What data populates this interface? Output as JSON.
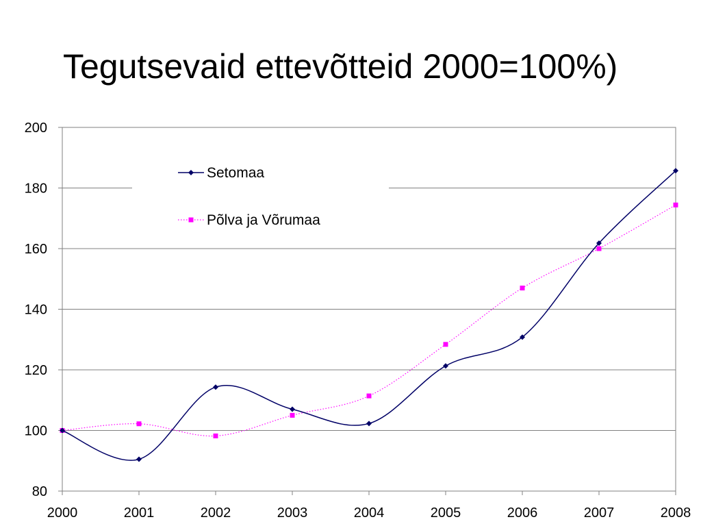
{
  "slide": {
    "title": "Tegutsevaid ettevõtteid 2000=100%)"
  },
  "chart_data": {
    "type": "line",
    "title": "Tegutsevaid ettevõtteid 2000=100%)",
    "xlabel": "",
    "ylabel": "",
    "x": [
      2000,
      2001,
      2002,
      2003,
      2004,
      2005,
      2006,
      2007,
      2008
    ],
    "x_tick_labels": [
      "2000",
      "2001",
      "2002",
      "2003",
      "2004",
      "2005",
      "2006",
      "2007",
      "2008"
    ],
    "ylim": [
      80,
      200
    ],
    "y_ticks": [
      80,
      100,
      120,
      140,
      160,
      180,
      200
    ],
    "y_tick_labels": [
      "80",
      "100",
      "120",
      "140",
      "160",
      "180",
      "200"
    ],
    "grid": true,
    "legend_position": "top-center",
    "series": [
      {
        "name": "Setomaa",
        "values": [
          100,
          90.5,
          114.3,
          107,
          102.3,
          121.3,
          130.8,
          161.8,
          185.7
        ],
        "color": "#000066",
        "line_style": "solid, smoothed",
        "marker": "diamond"
      },
      {
        "name": "Põlva ja Võrumaa",
        "values": [
          100,
          102.2,
          98.2,
          105,
          111.4,
          128.4,
          147,
          160,
          174.4
        ],
        "color": "#ff00ff",
        "line_style": "dotted, smoothed",
        "marker": "square"
      }
    ]
  }
}
